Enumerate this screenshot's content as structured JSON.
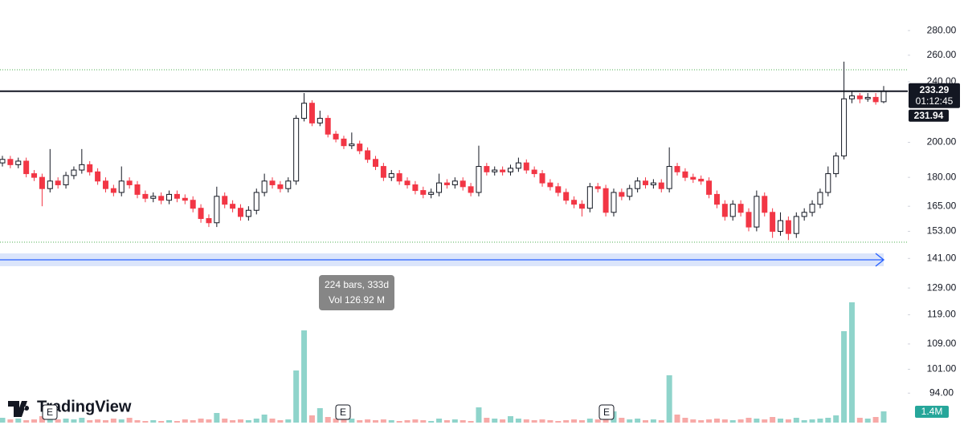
{
  "chart_data": {
    "type": "candlestick",
    "open": [
      188,
      190,
      187,
      189,
      182,
      180,
      174,
      178,
      176,
      181,
      184,
      187,
      183,
      178,
      174,
      172,
      178,
      176,
      171,
      169,
      170,
      168,
      171,
      169,
      168,
      164,
      159,
      157,
      170,
      166,
      164,
      160,
      163,
      172,
      178,
      176,
      174,
      178,
      215,
      225,
      212,
      215,
      205,
      202,
      198,
      199,
      195,
      190,
      186,
      180,
      182,
      178,
      176,
      173,
      171,
      172,
      177,
      176,
      178,
      175,
      172,
      186,
      183,
      184,
      183,
      185,
      188,
      184,
      182,
      177,
      175,
      172,
      168,
      166,
      164,
      175,
      174,
      162,
      172,
      170,
      174,
      178,
      176,
      177,
      174,
      186,
      183,
      180,
      179,
      178,
      171,
      166,
      160,
      166,
      162,
      155,
      170,
      162,
      153,
      158,
      152,
      160,
      162,
      166,
      172,
      182,
      192,
      228,
      230,
      228,
      229,
      226
    ],
    "high": [
      192,
      192,
      191,
      191,
      184,
      182,
      196,
      180,
      183,
      186,
      196,
      189,
      185,
      180,
      176,
      186,
      180,
      178,
      173,
      172,
      172,
      173,
      173,
      171,
      170,
      166,
      161,
      175,
      172,
      168,
      166,
      165,
      174,
      182,
      180,
      178,
      180,
      217,
      232,
      227,
      220,
      217,
      207,
      204,
      206,
      201,
      197,
      192,
      188,
      184,
      184,
      180,
      178,
      175,
      174,
      182,
      179,
      180,
      180,
      177,
      198,
      188,
      186,
      186,
      187,
      191,
      190,
      186,
      184,
      179,
      177,
      174,
      170,
      168,
      177,
      177,
      176,
      174,
      174,
      176,
      180,
      180,
      179,
      179,
      197,
      188,
      185,
      182,
      181,
      180,
      173,
      168,
      168,
      168,
      164,
      173,
      172,
      164,
      162,
      160,
      162,
      164,
      168,
      174,
      186,
      194,
      255,
      233,
      232,
      232,
      232,
      237
    ],
    "low": [
      186,
      185,
      185,
      180,
      178,
      165,
      172,
      174,
      174,
      179,
      182,
      181,
      176,
      172,
      170,
      170,
      174,
      169,
      167,
      167,
      166,
      166,
      167,
      166,
      162,
      157,
      155,
      155,
      164,
      162,
      158,
      158,
      161,
      170,
      174,
      172,
      172,
      176,
      213,
      210,
      210,
      203,
      200,
      196,
      196,
      193,
      188,
      184,
      178,
      178,
      176,
      174,
      171,
      169,
      169,
      170,
      174,
      174,
      173,
      170,
      170,
      181,
      181,
      181,
      181,
      183,
      182,
      180,
      175,
      173,
      170,
      166,
      164,
      160,
      162,
      172,
      160,
      160,
      168,
      168,
      172,
      174,
      174,
      172,
      172,
      181,
      178,
      177,
      176,
      169,
      164,
      158,
      158,
      160,
      153,
      153,
      160,
      150,
      151,
      149,
      150,
      158,
      160,
      164,
      170,
      180,
      190,
      225,
      225,
      226,
      224,
      225
    ],
    "close": [
      190,
      187,
      189,
      182,
      180,
      174,
      178,
      176,
      181,
      184,
      187,
      183,
      178,
      174,
      172,
      178,
      176,
      171,
      169,
      170,
      168,
      171,
      169,
      168,
      164,
      159,
      157,
      170,
      166,
      164,
      160,
      163,
      172,
      178,
      176,
      174,
      178,
      215,
      225,
      212,
      215,
      205,
      202,
      198,
      199,
      195,
      190,
      186,
      180,
      182,
      178,
      176,
      173,
      171,
      172,
      177,
      176,
      178,
      175,
      172,
      186,
      183,
      184,
      183,
      185,
      188,
      184,
      182,
      177,
      175,
      172,
      168,
      166,
      164,
      175,
      174,
      162,
      172,
      170,
      174,
      178,
      176,
      177,
      174,
      186,
      183,
      180,
      179,
      178,
      171,
      166,
      160,
      166,
      162,
      155,
      170,
      162,
      153,
      158,
      152,
      160,
      162,
      166,
      172,
      182,
      192,
      228,
      230,
      228,
      229,
      226,
      233.29
    ],
    "volume": [
      0.6,
      0.4,
      0.5,
      0.3,
      0.4,
      0.8,
      0.5,
      0.4,
      0.5,
      0.4,
      0.6,
      0.3,
      0.4,
      0.3,
      0.5,
      0.4,
      0.6,
      0.3,
      0.2,
      0.3,
      0.2,
      0.3,
      0.2,
      0.4,
      0.3,
      0.5,
      0.4,
      1.2,
      0.5,
      0.3,
      0.4,
      0.3,
      0.5,
      1.0,
      0.5,
      0.3,
      0.4,
      6.5,
      11.5,
      0.9,
      1.8,
      0.7,
      0.5,
      0.4,
      0.5,
      0.3,
      0.4,
      0.3,
      0.4,
      0.3,
      0.2,
      0.3,
      0.4,
      0.3,
      0.2,
      0.5,
      0.3,
      0.4,
      0.3,
      0.2,
      1.9,
      0.6,
      0.5,
      0.4,
      0.8,
      0.5,
      0.4,
      0.3,
      0.4,
      0.3,
      0.2,
      0.3,
      0.4,
      0.3,
      0.5,
      0.4,
      0.7,
      1.4,
      0.6,
      0.4,
      0.5,
      0.3,
      0.4,
      0.3,
      5.9,
      1.0,
      0.6,
      0.4,
      0.3,
      0.4,
      0.5,
      0.4,
      0.3,
      0.4,
      0.6,
      0.5,
      0.4,
      0.7,
      0.5,
      0.4,
      0.6,
      0.3,
      0.4,
      0.5,
      0.6,
      0.9,
      11.4,
      15.0,
      0.6,
      0.5,
      0.7,
      1.4
    ],
    "up_color": "#ffffff",
    "down_color": "#f23645",
    "up_wick_color": "#131722",
    "volume_up_color": "#8fd4cb",
    "volume_down_color": "#f7a9a7",
    "log_scale": true,
    "ylim": [
      85.4,
      307
    ],
    "yticks": [
      {
        "value": 280,
        "label": "280.00"
      },
      {
        "value": 260,
        "label": "260.00"
      },
      {
        "value": 240,
        "label": "240.00"
      },
      {
        "value": 200,
        "label": "200.00"
      },
      {
        "value": 180,
        "label": "180.00"
      },
      {
        "value": 165,
        "label": "165.00"
      },
      {
        "value": 153,
        "label": "153.00"
      },
      {
        "value": 141,
        "label": "141.00"
      },
      {
        "value": 129,
        "label": "129.00"
      },
      {
        "value": 119,
        "label": "119.00"
      },
      {
        "value": 109,
        "label": "109.00"
      },
      {
        "value": 101,
        "label": "101.00"
      },
      {
        "value": 94,
        "label": "94.00"
      }
    ],
    "vlim": [
      0,
      15.5
    ],
    "last_price_label": "233.29",
    "countdown": "01:12:45",
    "second_price_label": "231.94",
    "volume_label": "1.4M",
    "range_label": "224 bars, 333d",
    "range_volume": "Vol 126.92 M",
    "event_labels": [
      "E",
      "E",
      "E"
    ]
  },
  "brand": "TradingView"
}
